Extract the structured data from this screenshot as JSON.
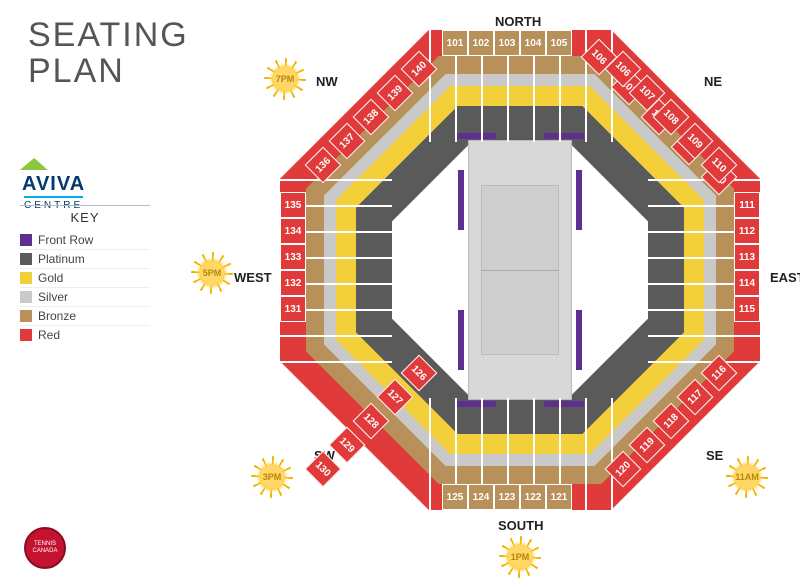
{
  "title_line1": "SEATING",
  "title_line2": "PLAN",
  "venue": {
    "name": "AVIVA",
    "sub": "CENTRE"
  },
  "key_title": "KEY",
  "tiers": [
    {
      "label": "Front Row",
      "color": "#5e2e91"
    },
    {
      "label": "Platinum",
      "color": "#5a5a5a"
    },
    {
      "label": "Gold",
      "color": "#f3cf3a"
    },
    {
      "label": "Silver",
      "color": "#c9c9c9"
    },
    {
      "label": "Bronze",
      "color": "#b8905a"
    },
    {
      "label": "Red",
      "color": "#e03a3a"
    }
  ],
  "compass": {
    "north": "NORTH",
    "south": "SOUTH",
    "east": "EAST",
    "west": "WEST",
    "ne": "NE",
    "nw": "NW",
    "se": "SE",
    "sw": "SW"
  },
  "suns": {
    "t7": "7PM",
    "t5": "5PM",
    "t3": "3PM",
    "t1": "1PM",
    "t11": "11AM"
  },
  "sections": {
    "north": [
      "101",
      "102",
      "103",
      "104",
      "105"
    ],
    "ne": [
      "106",
      "107",
      "108",
      "109",
      "110"
    ],
    "east": [
      "111",
      "112",
      "113",
      "114",
      "115"
    ],
    "se": [
      "116",
      "117",
      "118",
      "119",
      "120"
    ],
    "south": [
      "121",
      "122",
      "123",
      "124",
      "125"
    ],
    "sw": [
      "126",
      "127",
      "128",
      "129",
      "130"
    ],
    "west": [
      "131",
      "132",
      "133",
      "134",
      "135"
    ],
    "nw": [
      "136",
      "137",
      "138",
      "139",
      "140"
    ]
  },
  "red_sides": {
    "east": [
      "111",
      "112",
      "113",
      "114",
      "115"
    ],
    "west": [
      "135",
      "134",
      "133",
      "132",
      "131"
    ]
  },
  "badge": "TENNIS CANADA",
  "colors": {
    "red": "#e03a3a",
    "bronze": "#b8905a",
    "silver": "#c9c9c9",
    "gold": "#f3cf3a",
    "platinum": "#5a5a5a",
    "purple": "#5e2e91",
    "court": "#d8d8d8"
  }
}
